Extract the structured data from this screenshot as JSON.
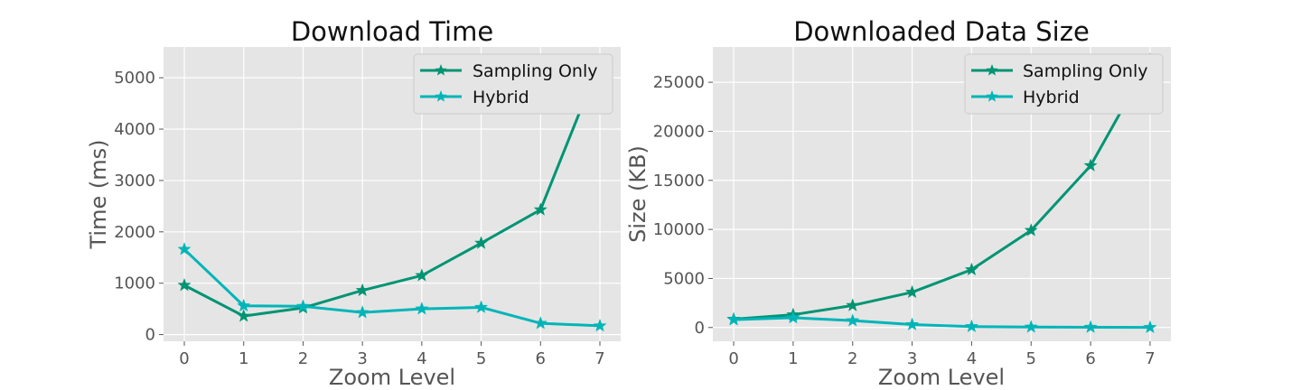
{
  "chart_data": [
    {
      "type": "line",
      "title": "Download Time",
      "xlabel": "Zoom Level",
      "ylabel": "Time (ms)",
      "x": [
        0,
        1,
        2,
        3,
        4,
        5,
        6,
        7
      ],
      "x_ticks": [
        "0",
        "1",
        "2",
        "3",
        "4",
        "5",
        "6",
        "7"
      ],
      "xlim": [
        -0.35,
        7.35
      ],
      "ylim": [
        -130,
        5600
      ],
      "y_ticks": [
        0,
        1000,
        2000,
        3000,
        4000,
        5000
      ],
      "y_tick_labels": [
        "0",
        "1000",
        "2000",
        "3000",
        "4000",
        "5000"
      ],
      "grid": true,
      "legend_position": "top-right",
      "marker": "star",
      "series": [
        {
          "name": "Sampling Only",
          "color": "#009473",
          "values": [
            960,
            360,
            520,
            860,
            1150,
            1780,
            2430,
            5310
          ]
        },
        {
          "name": "Hybrid",
          "color": "#00b5b8",
          "values": [
            1660,
            560,
            550,
            430,
            500,
            530,
            220,
            170
          ]
        }
      ]
    },
    {
      "type": "line",
      "title": "Downloaded Data Size",
      "xlabel": "Zoom Level",
      "ylabel": "Size (KB)",
      "x": [
        0,
        1,
        2,
        3,
        4,
        5,
        6,
        7
      ],
      "x_ticks": [
        "0",
        "1",
        "2",
        "3",
        "4",
        "5",
        "6",
        "7"
      ],
      "xlim": [
        -0.35,
        7.35
      ],
      "ylim": [
        -1400,
        28600
      ],
      "y_ticks": [
        0,
        5000,
        10000,
        15000,
        20000,
        25000
      ],
      "y_tick_labels": [
        "0",
        "5000",
        "10000",
        "15000",
        "20000",
        "25000"
      ],
      "grid": true,
      "legend_position": "top-right",
      "marker": "star",
      "series": [
        {
          "name": "Sampling Only",
          "color": "#009473",
          "values": [
            850,
            1300,
            2250,
            3600,
            5900,
            9900,
            16500,
            27300
          ]
        },
        {
          "name": "Hybrid",
          "color": "#00b5b8",
          "values": [
            800,
            1000,
            700,
            300,
            100,
            50,
            30,
            10
          ]
        }
      ]
    }
  ]
}
